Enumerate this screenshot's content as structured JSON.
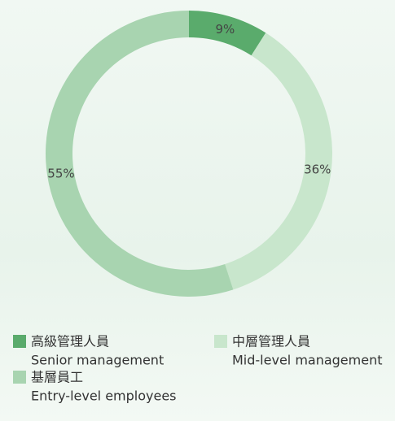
{
  "chart_data": {
    "type": "donut",
    "categories": [
      "高級管理人員",
      "中層管理人員",
      "基層員工"
    ],
    "categories_en": [
      "Senior management",
      "Mid-level management",
      "Entry-level employees"
    ],
    "values": [
      9,
      36,
      55
    ],
    "value_labels": [
      "9%",
      "36%",
      "55%"
    ],
    "colors": [
      "#5aab6c",
      "#c8e6cc",
      "#a8d4b0"
    ]
  }
}
